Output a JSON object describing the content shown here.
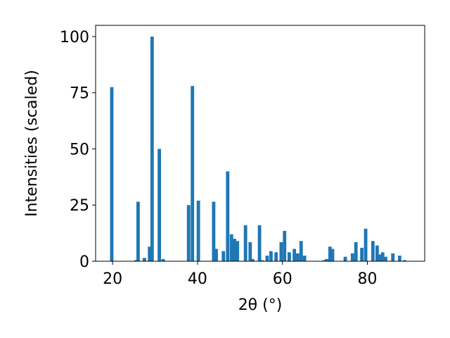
{
  "chart_data": {
    "type": "bar",
    "xlabel": "2θ (°)",
    "ylabel": "Intensities (scaled)",
    "xlim": [
      16,
      93.5
    ],
    "ylim": [
      0,
      105
    ],
    "xticks": [
      20,
      40,
      60,
      80
    ],
    "yticks": [
      0,
      25,
      50,
      75,
      100
    ],
    "grid": false,
    "bar_width": 0.8,
    "color": "#1f77b4",
    "x": [
      19.8,
      25.5,
      26.0,
      27.5,
      28.7,
      29.3,
      31.0,
      31.9,
      37.9,
      38.8,
      40.2,
      43.8,
      44.4,
      46.1,
      47.1,
      48.0,
      48.7,
      49.4,
      51.3,
      52.4,
      53.0,
      54.6,
      55.2,
      56.4,
      57.3,
      58.5,
      59.7,
      60.5,
      61.6,
      62.8,
      63.6,
      64.4,
      65.2,
      69.8,
      70.4,
      71.2,
      71.8,
      74.8,
      76.5,
      77.3,
      78.7,
      79.6,
      81.3,
      82.3,
      82.9,
      83.6,
      84.3,
      86.0,
      87.6,
      88.8
    ],
    "values": [
      77.5,
      0.5,
      26.5,
      1.5,
      6.5,
      100.0,
      50.0,
      1.0,
      25.0,
      78.0,
      27.0,
      26.5,
      5.5,
      4.5,
      40.0,
      12.0,
      10.0,
      9.0,
      16.0,
      8.5,
      1.0,
      16.0,
      0.5,
      2.5,
      4.5,
      4.0,
      8.5,
      13.5,
      4.0,
      5.5,
      3.5,
      9.0,
      2.5,
      0.5,
      1.0,
      6.5,
      5.5,
      2.0,
      3.5,
      8.5,
      6.0,
      14.5,
      9.0,
      7.0,
      3.0,
      4.0,
      2.0,
      3.5,
      2.5,
      0.5
    ]
  }
}
